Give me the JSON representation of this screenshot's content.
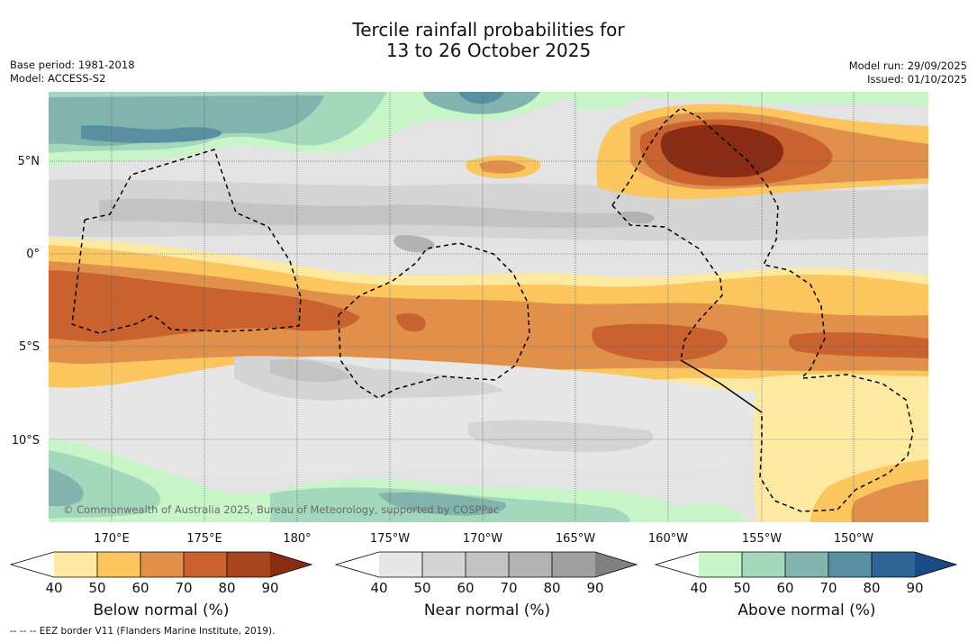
{
  "title": {
    "line1": "Tercile rainfall probabilities for",
    "line2": "13 to 26 October 2025"
  },
  "meta_left": {
    "base_period": "Base period: 1981-2018",
    "model": "Model: ACCESS-S2"
  },
  "meta_right": {
    "model_run": "Model run: 29/09/2025",
    "issued": "Issued: 01/10/2025"
  },
  "map": {
    "lat_labels": [
      "5°N",
      "0°",
      "5°S",
      "10°S"
    ],
    "lon_labels": [
      "170°E",
      "175°E",
      "180°",
      "175°W",
      "170°W",
      "165°W",
      "160°W",
      "155°W",
      "150°W"
    ],
    "copyright": "© Commonwealth of Australia 2025, Bureau of Meteorology, supported by COSPPac"
  },
  "legend": {
    "tick_values": [
      "40",
      "50",
      "60",
      "70",
      "80",
      "90"
    ],
    "below": {
      "title": "Below normal (%)",
      "colors": [
        "#ffffff",
        "#fde9a0",
        "#fbc65e",
        "#e0904a",
        "#c9622f",
        "#a7451f",
        "#8a2c14"
      ]
    },
    "near": {
      "title": "Near normal (%)",
      "colors": [
        "#ffffff",
        "#e6e6e6",
        "#d4d4d4",
        "#c3c3c3",
        "#b2b2b2",
        "#a0a0a0",
        "#808080"
      ]
    },
    "above": {
      "title": "Above normal (%)",
      "colors": [
        "#ffffff",
        "#c8f5c8",
        "#a4d8bc",
        "#80b4ac",
        "#5890a2",
        "#2e6496",
        "#1a4a82"
      ]
    }
  },
  "footnote": "--  --  -- EEZ border V11 (Flanders Marine Institute, 2019)."
}
